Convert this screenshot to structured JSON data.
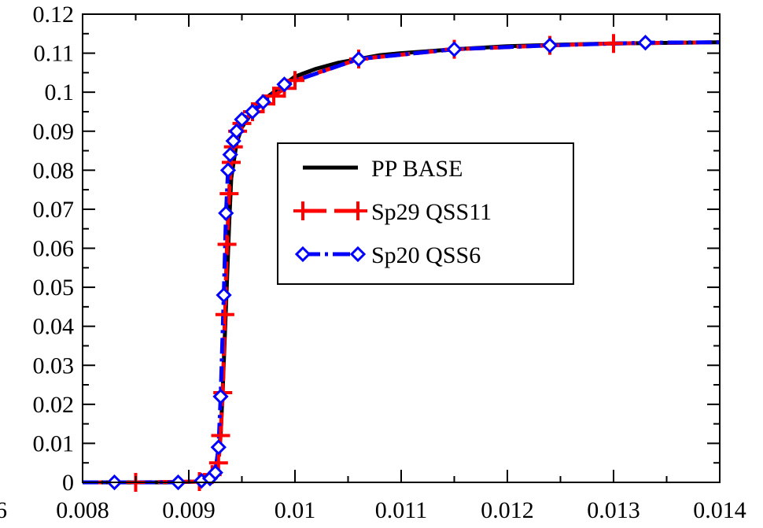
{
  "chart_data": {
    "type": "line",
    "title": "",
    "xlabel": "",
    "ylabel": "",
    "xlim": [
      0.008,
      0.014
    ],
    "ylim": [
      0,
      0.12
    ],
    "x_ticks": [
      0.008,
      0.009,
      0.01,
      0.011,
      0.012,
      0.013,
      0.014
    ],
    "x_tick_labels": [
      "0.008",
      "0.009",
      "0.01",
      "0.011",
      "0.012",
      "0.013",
      "0.014"
    ],
    "x_left_cut_label": "6",
    "y_ticks": [
      0,
      0.01,
      0.02,
      0.03,
      0.04,
      0.05,
      0.06,
      0.07,
      0.08,
      0.09,
      0.1,
      0.11,
      0.12
    ],
    "y_tick_labels": [
      "0",
      "0.01",
      "0.02",
      "0.03",
      "0.04",
      "0.05",
      "0.06",
      "0.07",
      "0.08",
      "0.09",
      "0.1",
      "0.11",
      "0.12"
    ],
    "grid": false,
    "legend_position": "center-right",
    "series": [
      {
        "name": "PP BASE",
        "color": "#000000",
        "style": "solid",
        "marker": "none",
        "x": [
          0.008,
          0.0088,
          0.0091,
          0.0092,
          0.00925,
          0.0093,
          0.00932,
          0.00935,
          0.00938,
          0.0094,
          0.00945,
          0.0095,
          0.0096,
          0.0097,
          0.0098,
          0.0099,
          0.01,
          0.0102,
          0.0104,
          0.0106,
          0.0108,
          0.011,
          0.0115,
          0.012,
          0.0125,
          0.013,
          0.014
        ],
        "y": [
          0,
          0,
          0.0002,
          0.0008,
          0.003,
          0.012,
          0.024,
          0.045,
          0.066,
          0.078,
          0.087,
          0.091,
          0.095,
          0.098,
          0.1,
          0.102,
          0.104,
          0.106,
          0.1075,
          0.1085,
          0.1095,
          0.11,
          0.111,
          0.1118,
          0.1122,
          0.1125,
          0.1128
        ]
      },
      {
        "name": "Sp29 QSS11",
        "color": "#ff0000",
        "style": "dashed",
        "marker": "plus",
        "x": [
          0.008,
          0.0085,
          0.0091,
          0.00922,
          0.00928,
          0.0093,
          0.00932,
          0.00934,
          0.00936,
          0.00938,
          0.0094,
          0.00942,
          0.00946,
          0.0095,
          0.0096,
          0.0097,
          0.0098,
          0.0099,
          0.01,
          0.0106,
          0.0115,
          0.0124,
          0.013,
          0.014
        ],
        "y": [
          0,
          0,
          0.0002,
          0.002,
          0.005,
          0.012,
          0.023,
          0.043,
          0.061,
          0.074,
          0.082,
          0.086,
          0.09,
          0.092,
          0.095,
          0.097,
          0.099,
          0.101,
          0.103,
          0.1085,
          0.111,
          0.112,
          0.1125,
          0.1128
        ]
      },
      {
        "name": "Sp20 QSS6",
        "color": "#0000ff",
        "style": "dashdot",
        "marker": "diamond",
        "x": [
          0.008,
          0.0083,
          0.0089,
          0.00912,
          0.0092,
          0.00925,
          0.00928,
          0.0093,
          0.00933,
          0.00935,
          0.00937,
          0.00939,
          0.00942,
          0.00945,
          0.0095,
          0.0096,
          0.0097,
          0.0099,
          0.0106,
          0.0115,
          0.0124,
          0.0133,
          0.014
        ],
        "y": [
          0,
          0,
          0,
          0.0004,
          0.001,
          0.0025,
          0.009,
          0.022,
          0.048,
          0.069,
          0.08,
          0.084,
          0.0875,
          0.09,
          0.093,
          0.095,
          0.0975,
          0.102,
          0.1085,
          0.111,
          0.112,
          0.1127,
          0.1128
        ]
      }
    ]
  }
}
